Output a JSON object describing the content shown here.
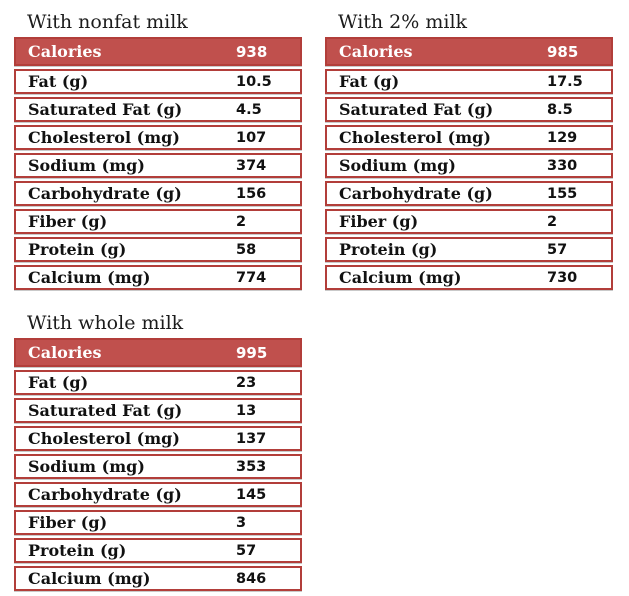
{
  "colors": {
    "header_fill": "#C0504D",
    "border": "#B23E3A",
    "header_text": "#FFFFFF",
    "body_text": "#111111",
    "title_text": "#1C1C1C",
    "page_background": "#FFFFFF"
  },
  "tables": [
    {
      "title": "With nonfat milk",
      "header": {
        "label": "Calories",
        "value": "938"
      },
      "rows": [
        {
          "label": "Fat (g)",
          "value": "10.5"
        },
        {
          "label": "Saturated Fat (g)",
          "value": "4.5"
        },
        {
          "label": "Cholesterol (mg)",
          "value": "107"
        },
        {
          "label": "Sodium (mg)",
          "value": "374"
        },
        {
          "label": "Carbohydrate (g)",
          "value": "156"
        },
        {
          "label": "Fiber (g)",
          "value": "2"
        },
        {
          "label": "Protein (g)",
          "value": "58"
        },
        {
          "label": "Calcium (mg)",
          "value": "774"
        }
      ]
    },
    {
      "title": "With 2% milk",
      "header": {
        "label": "Calories",
        "value": "985"
      },
      "rows": [
        {
          "label": "Fat (g)",
          "value": "17.5"
        },
        {
          "label": "Saturated Fat (g)",
          "value": "8.5"
        },
        {
          "label": "Cholesterol (mg)",
          "value": "129"
        },
        {
          "label": "Sodium (mg)",
          "value": "330"
        },
        {
          "label": "Carbohydrate (g)",
          "value": "155"
        },
        {
          "label": "Fiber (g)",
          "value": "2"
        },
        {
          "label": "Protein (g)",
          "value": "57"
        },
        {
          "label": "Calcium (mg)",
          "value": "730"
        }
      ]
    },
    {
      "title": "With whole milk",
      "header": {
        "label": "Calories",
        "value": "995"
      },
      "rows": [
        {
          "label": "Fat (g)",
          "value": "23"
        },
        {
          "label": "Saturated Fat (g)",
          "value": "13"
        },
        {
          "label": "Cholesterol (mg)",
          "value": "137"
        },
        {
          "label": "Sodium (mg)",
          "value": "353"
        },
        {
          "label": "Carbohydrate (g)",
          "value": "145"
        },
        {
          "label": "Fiber (g)",
          "value": "3"
        },
        {
          "label": "Protein (g)",
          "value": "57"
        },
        {
          "label": "Calcium (mg)",
          "value": "846"
        }
      ]
    }
  ]
}
